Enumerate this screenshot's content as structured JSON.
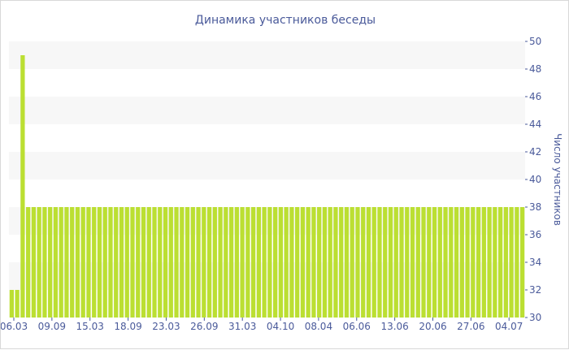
{
  "chart_data": {
    "type": "bar",
    "title": "Динамика участников беседы",
    "xlabel": "",
    "ylabel": "Число участников",
    "ylim": [
      30,
      50
    ],
    "y_ticks": [
      "30",
      "32",
      "34",
      "36",
      "38",
      "40",
      "42",
      "44",
      "46",
      "48",
      "50"
    ],
    "y_axis_side": "right",
    "x_tick_labels": [
      "06.03",
      "09.09",
      "15.03",
      "18.09",
      "23.03",
      "26.09",
      "31.03",
      "04.10",
      "08.04",
      "06.06",
      "13.06",
      "20.06",
      "27.06",
      "04.07"
    ],
    "grid": "alternating horizontal bands",
    "legend": "none",
    "bar_color": "#bbdf32",
    "band_color": "#f7f7f7",
    "series": [
      {
        "values": [
          32,
          32,
          49,
          38,
          38,
          38,
          38,
          38,
          38,
          38,
          38,
          38,
          38,
          38,
          38,
          38,
          38,
          38,
          38,
          38,
          38,
          38,
          38,
          38,
          38,
          38,
          38,
          38,
          38,
          38,
          38,
          38,
          38,
          38,
          38,
          38,
          38,
          38,
          38,
          38,
          38,
          38,
          38,
          38,
          38,
          38,
          38,
          38,
          38,
          38,
          38,
          38,
          38,
          38,
          38,
          38,
          38,
          38,
          38,
          38,
          38,
          38,
          38,
          38,
          38,
          38,
          38,
          38,
          38,
          38,
          38,
          38,
          38,
          38,
          38,
          38,
          38,
          38,
          38,
          38,
          38,
          38,
          38,
          38,
          38,
          38,
          38,
          38,
          38,
          38,
          38,
          38,
          38,
          38
        ]
      }
    ]
  }
}
